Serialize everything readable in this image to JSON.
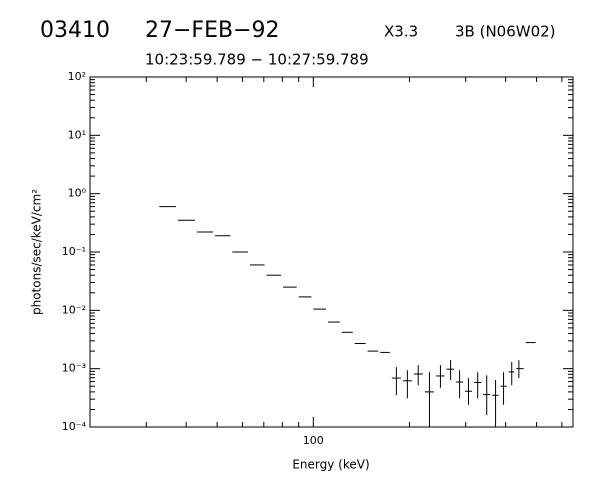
{
  "chart_data": {
    "type": "scatter",
    "title": "03410",
    "date": "27−FEB−92",
    "flare_class": "X3.3",
    "location": "3B (N06W02)",
    "subtitle": "10:23:59.789 − 10:27:59.789",
    "xlabel": "Energy (keV)",
    "ylabel": "photons/sec/keV/cm²",
    "xlog": true,
    "ylog": true,
    "color": "#000000",
    "xlim": [
      20,
      650
    ],
    "ylim": [
      0.0001,
      100
    ],
    "xticks": [
      100
    ],
    "xminor": [
      30,
      40,
      50,
      60,
      70,
      80,
      90,
      200,
      300,
      400,
      500,
      600
    ],
    "yticks": [
      {
        "value": 100,
        "label": "10²"
      },
      {
        "value": 10,
        "label": "10¹"
      },
      {
        "value": 1,
        "label": "10⁰"
      },
      {
        "value": 0.1,
        "label": "10⁻¹"
      },
      {
        "value": 0.01,
        "label": "10⁻²"
      },
      {
        "value": 0.001,
        "label": "10⁻³"
      },
      {
        "value": 0.0001,
        "label": "10⁻⁴"
      }
    ],
    "yminor": [
      0.0002,
      0.0003,
      0.0004,
      0.0005,
      0.0006,
      0.0007,
      0.0008,
      0.0009,
      0.002,
      0.003,
      0.004,
      0.005,
      0.006,
      0.007,
      0.008,
      0.009,
      0.02,
      0.03,
      0.04,
      0.05,
      0.06,
      0.07,
      0.08,
      0.09,
      0.2,
      0.3,
      0.4,
      0.5,
      0.6,
      0.7,
      0.8,
      0.9,
      2,
      3,
      4,
      5,
      6,
      7,
      8,
      9,
      20,
      30,
      40,
      50,
      60,
      70,
      80,
      90
    ],
    "x": [
      35,
      40,
      46,
      52,
      59,
      67,
      75,
      85,
      94,
      105,
      116,
      128,
      140,
      154,
      168,
      182,
      197,
      213,
      231,
      250,
      269,
      287,
      306,
      327,
      349,
      372,
      394,
      418,
      440,
      479
    ],
    "values": [
      0.6,
      0.35,
      0.22,
      0.19,
      0.1,
      0.06,
      0.04,
      0.025,
      0.017,
      0.0105,
      0.0063,
      0.0042,
      0.0027,
      0.002,
      0.0019,
      0.00069,
      0.00062,
      0.00081,
      0.0004,
      0.00075,
      0.00098,
      0.00059,
      0.00041,
      0.00058,
      0.00036,
      0.00035,
      0.0005,
      0.00088,
      0.001,
      0.0028
    ],
    "ylow": [
      null,
      null,
      null,
      null,
      null,
      null,
      null,
      null,
      null,
      null,
      null,
      null,
      null,
      null,
      null,
      0.00035,
      0.00031,
      0.00052,
      8e-05,
      0.00047,
      0.00064,
      0.00031,
      0.00024,
      0.00031,
      0.00016,
      6e-05,
      0.00024,
      0.00052,
      0.00069,
      null
    ],
    "yhigh": [
      null,
      null,
      null,
      null,
      null,
      null,
      null,
      null,
      null,
      null,
      null,
      null,
      null,
      null,
      null,
      0.00106,
      0.00094,
      0.00115,
      0.00087,
      0.00115,
      0.0014,
      0.00094,
      0.00069,
      0.00087,
      0.00077,
      0.00064,
      0.00087,
      0.0013,
      0.0014,
      null
    ]
  }
}
